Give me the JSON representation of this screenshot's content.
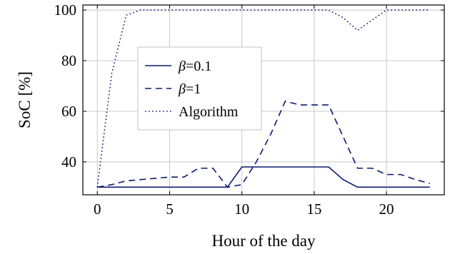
{
  "chart_data": {
    "type": "line",
    "xlabel": "Hour of the day",
    "ylabel": "SoC [%]",
    "xlim": [
      -1,
      24
    ],
    "ylim": [
      27,
      102
    ],
    "xticks": [
      0,
      5,
      10,
      15,
      20
    ],
    "yticks": [
      40,
      60,
      80,
      100
    ],
    "grid": true,
    "legend_position": "center-left",
    "line_color": "#0c1a73",
    "x": [
      0,
      1,
      2,
      3,
      4,
      5,
      6,
      7,
      8,
      9,
      10,
      11,
      12,
      13,
      14,
      15,
      16,
      17,
      18,
      19,
      20,
      21,
      22,
      23
    ],
    "series": [
      {
        "name": "β=0.1",
        "style": "solid",
        "values": [
          30,
          30,
          30,
          30,
          30,
          30,
          30,
          30,
          30,
          30,
          38,
          38,
          38,
          38,
          38,
          38,
          38,
          33,
          30,
          30,
          30,
          30,
          30,
          30
        ]
      },
      {
        "name": "β=1",
        "style": "dashed",
        "values": [
          30,
          31,
          32.5,
          33,
          33.5,
          34,
          34,
          37.5,
          37.5,
          30,
          31,
          40,
          51,
          64,
          62.5,
          62.5,
          62.5,
          50,
          37.5,
          37.5,
          35,
          35,
          33,
          31.5
        ]
      },
      {
        "name": "Algorithm",
        "style": "dotted",
        "values": [
          30,
          75,
          98,
          100,
          100,
          100,
          100,
          100,
          100,
          100,
          100,
          100,
          100,
          100,
          100,
          100,
          100,
          97,
          92,
          96,
          100,
          100,
          100,
          100
        ]
      }
    ]
  }
}
